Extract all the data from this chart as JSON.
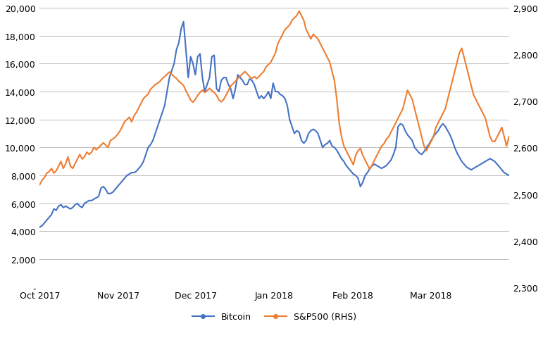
{
  "bitcoin_color": "#4472C4",
  "sp500_color": "#ED7D31",
  "line_width": 1.5,
  "btc_ylim": [
    0,
    20000
  ],
  "sp500_ylim": [
    2300,
    2900
  ],
  "btc_yticks": [
    0,
    2000,
    4000,
    6000,
    8000,
    10000,
    12000,
    14000,
    16000,
    18000,
    20000
  ],
  "btc_yticklabels": [
    "-",
    "2,000",
    "4,000",
    "6,000",
    "8,000",
    "10,000",
    "12,000",
    "14,000",
    "16,000",
    "18,000",
    "20,000"
  ],
  "sp500_yticks": [
    2300,
    2400,
    2500,
    2600,
    2700,
    2800,
    2900
  ],
  "sp500_yticklabels": [
    "2,300",
    "2,400",
    "2,500",
    "2,600",
    "2,700",
    "2,800",
    "2,900"
  ],
  "xtick_labels": [
    "Oct 2017",
    "Nov 2017",
    "Dec 2017",
    "Jan 2018",
    "Feb 2018",
    "Mar 2018"
  ],
  "xtick_positions": [
    0,
    0.167,
    0.333,
    0.5,
    0.667,
    0.833
  ],
  "background_color": "#ffffff",
  "grid_color": "#bfbfbf",
  "legend_labels": [
    "Bitcoin",
    "S&P500 (RHS)"
  ],
  "bitcoin_data": [
    4300,
    4400,
    4600,
    4800,
    5000,
    5200,
    5600,
    5500,
    5800,
    5900,
    5700,
    5800,
    5700,
    5600,
    5700,
    5900,
    6000,
    5800,
    5700,
    6000,
    6100,
    6200,
    6200,
    6300,
    6400,
    6500,
    7100,
    7200,
    7000,
    6700,
    6700,
    6800,
    7000,
    7200,
    7400,
    7600,
    7800,
    8000,
    8100,
    8200,
    8200,
    8300,
    8500,
    8700,
    9000,
    9500,
    10000,
    10200,
    10500,
    11000,
    11500,
    12000,
    12500,
    13000,
    14000,
    15000,
    15500,
    16000,
    17000,
    17500,
    18500,
    19000,
    17000,
    15000,
    16500,
    16000,
    15200,
    16500,
    16700,
    15000,
    14000,
    14500,
    15000,
    16500,
    16600,
    14200,
    14000,
    14800,
    15000,
    15000,
    14500,
    14200,
    13500,
    14200,
    15200,
    15000,
    14800,
    14500,
    14500,
    14900,
    14800,
    14500,
    14000,
    13500,
    13700,
    13500,
    13700,
    14000,
    13500,
    14600,
    14000,
    14000,
    13800,
    13700,
    13500,
    13000,
    12000,
    11500,
    11000,
    11200,
    11100,
    10500,
    10300,
    10500,
    11000,
    11200,
    11300,
    11200,
    11000,
    10500,
    10000,
    10200,
    10300,
    10500,
    10100,
    10000,
    9800,
    9500,
    9200,
    9000,
    8700,
    8500,
    8300,
    8100,
    8000,
    7800,
    7200,
    7500,
    8000,
    8200,
    8500,
    8700,
    8800,
    8700,
    8600,
    8500,
    8600,
    8700,
    8900,
    9100,
    9500,
    10000,
    11500,
    11700,
    11600,
    11200,
    10900,
    10700,
    10500,
    10000,
    9800,
    9600,
    9500,
    9700,
    10000,
    10200,
    10500,
    10800,
    11000,
    11200,
    11500,
    11700,
    11500,
    11200,
    10900,
    10500,
    10000,
    9600,
    9300,
    9000,
    8800,
    8600,
    8500,
    8400,
    8500,
    8600,
    8700,
    8800,
    8900,
    9000,
    9100,
    9200,
    9100,
    9000,
    8800,
    8600,
    8400,
    8200,
    8100,
    8000
  ],
  "sp500_data": [
    2520,
    2530,
    2535,
    2545,
    2548,
    2555,
    2545,
    2550,
    2560,
    2570,
    2555,
    2565,
    2580,
    2560,
    2555,
    2565,
    2575,
    2585,
    2575,
    2580,
    2590,
    2585,
    2590,
    2600,
    2595,
    2600,
    2605,
    2610,
    2605,
    2600,
    2615,
    2618,
    2622,
    2628,
    2635,
    2645,
    2655,
    2660,
    2665,
    2655,
    2668,
    2675,
    2685,
    2695,
    2705,
    2710,
    2715,
    2725,
    2730,
    2735,
    2738,
    2742,
    2748,
    2752,
    2757,
    2762,
    2757,
    2752,
    2748,
    2742,
    2738,
    2733,
    2722,
    2712,
    2702,
    2697,
    2703,
    2712,
    2718,
    2723,
    2718,
    2722,
    2727,
    2722,
    2718,
    2712,
    2702,
    2698,
    2703,
    2712,
    2722,
    2732,
    2737,
    2742,
    2748,
    2753,
    2758,
    2763,
    2758,
    2752,
    2748,
    2752,
    2748,
    2752,
    2758,
    2763,
    2773,
    2778,
    2783,
    2793,
    2803,
    2823,
    2833,
    2843,
    2853,
    2858,
    2863,
    2873,
    2878,
    2883,
    2893,
    2883,
    2873,
    2853,
    2843,
    2833,
    2843,
    2838,
    2833,
    2823,
    2813,
    2803,
    2793,
    2783,
    2763,
    2743,
    2703,
    2653,
    2623,
    2603,
    2593,
    2583,
    2573,
    2563,
    2583,
    2593,
    2598,
    2583,
    2573,
    2563,
    2553,
    2563,
    2573,
    2583,
    2593,
    2603,
    2608,
    2618,
    2623,
    2633,
    2643,
    2653,
    2663,
    2673,
    2683,
    2703,
    2723,
    2713,
    2703,
    2683,
    2663,
    2643,
    2623,
    2603,
    2593,
    2603,
    2613,
    2623,
    2643,
    2653,
    2663,
    2673,
    2683,
    2703,
    2723,
    2743,
    2763,
    2783,
    2803,
    2813,
    2793,
    2773,
    2753,
    2733,
    2713,
    2703,
    2693,
    2683,
    2673,
    2663,
    2643,
    2623,
    2613,
    2613,
    2623,
    2633,
    2643,
    2623,
    2603,
    2623
  ]
}
